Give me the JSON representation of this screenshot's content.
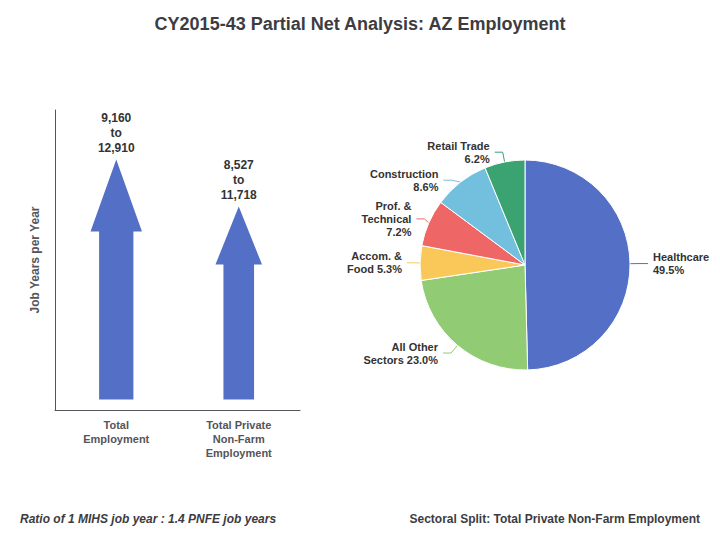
{
  "chart_data": [
    {
      "type": "arrow",
      "title": "CY2015-43 Partial Net Analysis: AZ Employment",
      "ylabel": "Job Years per Year",
      "categories": [
        "Total\nEmployment",
        "Total Private\nNon-Farm\nEmployment"
      ],
      "annotations": [
        "9,160\nto\n12,910",
        "8,527\nto\n11,718"
      ],
      "caption": "Ratio of 1 MIHS job year : 1.4 PNFE job years",
      "tick_labels": "x"
    },
    {
      "type": "pie",
      "subtitle": "Sectoral Split: Total Private Non-Farm Employment",
      "values": [
        49.5,
        23.0,
        5.3,
        7.2,
        8.6,
        6.2
      ],
      "value_labels": [
        "Healthcare\n49.5%",
        "All Other\nSectors 23.0%",
        "Accom. &\nFood 5.3%",
        "Prof. &\nTechnical\n7.2%",
        "Construction\n8.6%",
        "Retail Trade\n6.2%"
      ],
      "data_labels": true
    }
  ]
}
